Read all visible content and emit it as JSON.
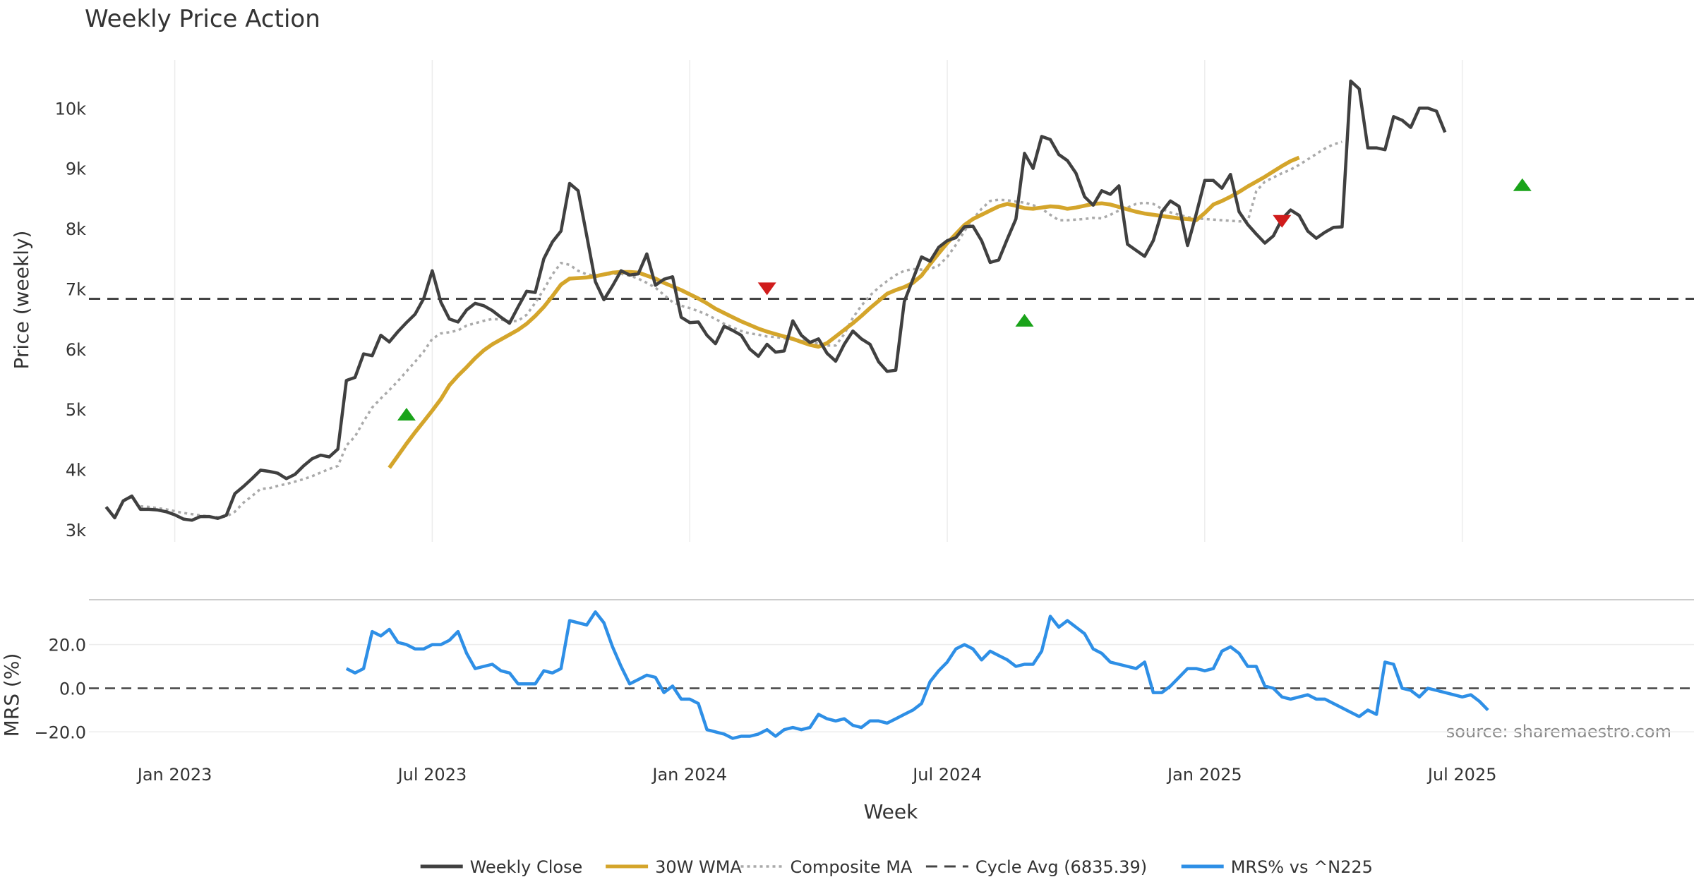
{
  "colors": {
    "close": "#404040",
    "wma": "#d4a52b",
    "composite": "#aaaaaa",
    "cycle": "#444444",
    "mrs": "#2e8fe6",
    "buy": "#1aa31a",
    "sell": "#d01c1c",
    "grid": "#ececec"
  },
  "chart_data": [
    {
      "type": "line",
      "title": "Weekly Price Action",
      "xlabel": "",
      "ylabel": "Price (weekly)",
      "xlim": [
        -2,
        185
      ],
      "ylim": [
        2800,
        10800
      ],
      "yticks": [
        3000,
        4000,
        5000,
        6000,
        7000,
        8000,
        9000,
        10000
      ],
      "ytick_labels": [
        "3k",
        "4k",
        "5k",
        "6k",
        "7k",
        "8k",
        "9k",
        "10k"
      ],
      "grid": true,
      "series": [
        {
          "name": "Weekly Close",
          "style": "solid",
          "start": 0,
          "values": [
            3380,
            3200,
            3480,
            3560,
            3340,
            3340,
            3330,
            3300,
            3250,
            3180,
            3160,
            3220,
            3220,
            3190,
            3240,
            3600,
            3720,
            3850,
            3990,
            3970,
            3940,
            3850,
            3920,
            4060,
            4180,
            4240,
            4210,
            4340,
            5480,
            5530,
            5920,
            5890,
            6230,
            6120,
            6290,
            6440,
            6580,
            6840,
            7300,
            6780,
            6500,
            6450,
            6650,
            6760,
            6720,
            6640,
            6530,
            6430,
            6700,
            6960,
            6940,
            7500,
            7780,
            7960,
            8750,
            8630,
            7880,
            7120,
            6820,
            7050,
            7300,
            7230,
            7250,
            7580,
            7060,
            7160,
            7200,
            6530,
            6440,
            6450,
            6230,
            6090,
            6380,
            6310,
            6230,
            6000,
            5880,
            6080,
            5950,
            5970,
            6470,
            6230,
            6110,
            6170,
            5930,
            5800,
            6080,
            6300,
            6170,
            6080,
            5790,
            5630,
            5650,
            6790,
            7160,
            7530,
            7460,
            7690,
            7800,
            7850,
            8030,
            8040,
            7800,
            7440,
            7480,
            7830,
            8160,
            9250,
            9000,
            9530,
            9480,
            9230,
            9130,
            8920,
            8530,
            8390,
            8630,
            8570,
            8710,
            7740,
            7640,
            7540,
            7800,
            8280,
            8460,
            8370,
            7720,
            8240,
            8800,
            8800,
            8670,
            8900,
            8280,
            8070,
            7910,
            7760,
            7880,
            8160,
            8310,
            8220,
            7960,
            7840,
            7940,
            8020,
            8030,
            10450,
            10320,
            9340,
            9340,
            9310,
            9860,
            9800,
            9680,
            10000,
            10000,
            9950,
            9600
          ]
        },
        {
          "name": "30W WMA",
          "style": "solid",
          "start": 33,
          "values": [
            4030,
            4230,
            4430,
            4620,
            4800,
            4980,
            5170,
            5400,
            5560,
            5700,
            5850,
            5980,
            6080,
            6160,
            6240,
            6320,
            6420,
            6550,
            6700,
            6880,
            7070,
            7170,
            7180,
            7190,
            7210,
            7240,
            7270,
            7280,
            7280,
            7270,
            7220,
            7170,
            7100,
            7040,
            6980,
            6910,
            6840,
            6760,
            6670,
            6600,
            6530,
            6460,
            6400,
            6340,
            6290,
            6250,
            6210,
            6170,
            6120,
            6070,
            6040,
            6100,
            6210,
            6320,
            6430,
            6550,
            6680,
            6800,
            6920,
            6980,
            7030,
            7100,
            7220,
            7410,
            7590,
            7760,
            7910,
            8060,
            8160,
            8230,
            8300,
            8370,
            8410,
            8380,
            8340,
            8330,
            8350,
            8370,
            8360,
            8330,
            8350,
            8380,
            8410,
            8420,
            8400,
            8360,
            8320,
            8280,
            8250,
            8230,
            8210,
            8190,
            8170,
            8160,
            8140,
            8260,
            8400,
            8460,
            8530,
            8610,
            8700,
            8780,
            8860,
            8950,
            9040,
            9120,
            9180
          ]
        },
        {
          "name": "Composite MA",
          "style": "dotted",
          "start": 4,
          "values": [
            3390,
            3380,
            3360,
            3340,
            3310,
            3280,
            3260,
            3240,
            3220,
            3210,
            3220,
            3300,
            3450,
            3560,
            3680,
            3690,
            3730,
            3760,
            3800,
            3840,
            3890,
            3950,
            4010,
            4060,
            4400,
            4550,
            4800,
            5030,
            5180,
            5320,
            5470,
            5630,
            5790,
            5960,
            6170,
            6260,
            6280,
            6310,
            6390,
            6430,
            6470,
            6500,
            6490,
            6460,
            6470,
            6570,
            6770,
            6990,
            7240,
            7430,
            7400,
            7300,
            7240,
            7220,
            7230,
            7250,
            7250,
            7220,
            7170,
            7100,
            7020,
            6900,
            6780,
            6720,
            6680,
            6630,
            6570,
            6500,
            6420,
            6360,
            6300,
            6260,
            6240,
            6210,
            6200,
            6180,
            6160,
            6150,
            6120,
            6090,
            6060,
            6060,
            6250,
            6520,
            6720,
            6890,
            7020,
            7130,
            7230,
            7300,
            7330,
            7320,
            7330,
            7390,
            7530,
            7730,
            7960,
            8160,
            8330,
            8460,
            8480,
            8470,
            8450,
            8430,
            8390,
            8330,
            8230,
            8140,
            8140,
            8150,
            8160,
            8180,
            8170,
            8230,
            8300,
            8350,
            8410,
            8430,
            8410,
            8330,
            8270,
            8230,
            8190,
            8170,
            8160,
            8150,
            8140,
            8130,
            8120,
            8120,
            8620,
            8780,
            8850,
            8920,
            8980,
            9060,
            9150,
            9240,
            9330,
            9400,
            9440
          ]
        },
        {
          "name": "Cycle Avg (6835.39)",
          "style": "dashed",
          "value": 6835.39
        }
      ],
      "markers": [
        {
          "kind": "buy",
          "x": 35,
          "y": 4920
        },
        {
          "kind": "sell",
          "x": 77,
          "y": 7000
        },
        {
          "kind": "buy",
          "x": 107,
          "y": 6480
        },
        {
          "kind": "sell",
          "x": 137,
          "y": 8120
        },
        {
          "kind": "buy",
          "x": 165,
          "y": 8730
        }
      ]
    },
    {
      "type": "line",
      "title": "",
      "xlabel": "Week",
      "ylabel": "MRS (%)",
      "xlim": [
        -2,
        185
      ],
      "ylim": [
        -28,
        38
      ],
      "yticks": [
        -20,
        0,
        20
      ],
      "ytick_labels": [
        "−20.0",
        "0.0",
        "20.0"
      ],
      "grid": true,
      "zero_line": "dashed",
      "series": [
        {
          "name": "MRS% vs ^N225",
          "style": "solid",
          "start": 28,
          "values": [
            9,
            7,
            9,
            26,
            24,
            27,
            21,
            20,
            18,
            18,
            20,
            20,
            22,
            26,
            16,
            9,
            10,
            11,
            8,
            7,
            2,
            2,
            2,
            8,
            7,
            9,
            31,
            30,
            29,
            35,
            30,
            19,
            10,
            2,
            4,
            6,
            5,
            -2,
            1,
            -5,
            -5,
            -7,
            -19,
            -20,
            -21,
            -23,
            -22,
            -22,
            -21,
            -19,
            -22,
            -19,
            -18,
            -19,
            -18,
            -12,
            -14,
            -15,
            -14,
            -17,
            -18,
            -15,
            -15,
            -16,
            -14,
            -12,
            -10,
            -7,
            3,
            8,
            12,
            18,
            20,
            18,
            13,
            17,
            15,
            13,
            10,
            11,
            11,
            17,
            33,
            28,
            31,
            28,
            25,
            18,
            16,
            12,
            11,
            10,
            9,
            12,
            -2,
            -2,
            1,
            5,
            9,
            9,
            8,
            9,
            17,
            19,
            16,
            10,
            10,
            1,
            0,
            -4,
            -5,
            -4,
            -3,
            -5,
            -5,
            -7,
            -9,
            -11,
            -13,
            -10,
            -12,
            12,
            11,
            0,
            -1,
            -4,
            0,
            -1,
            -2,
            -3,
            -4,
            -3,
            -6,
            -10
          ]
        }
      ]
    }
  ],
  "x_ticks": [
    {
      "x": 8,
      "label": "Jan 2023"
    },
    {
      "x": 38,
      "label": "Jul 2023"
    },
    {
      "x": 68,
      "label": "Jan 2024"
    },
    {
      "x": 98,
      "label": "Jul 2024"
    },
    {
      "x": 128,
      "label": "Jan 2025"
    },
    {
      "x": 158,
      "label": "Jul 2025"
    }
  ],
  "source_note": "source: sharemaestro.com",
  "legend": {
    "placement": "bottom-center",
    "items": [
      {
        "label": "Weekly Close",
        "style": "solid",
        "color_key": "close"
      },
      {
        "label": "30W WMA",
        "style": "solid",
        "color_key": "wma"
      },
      {
        "label": "Composite MA",
        "style": "dotted",
        "color_key": "composite"
      },
      {
        "label": "Cycle Avg (6835.39)",
        "style": "dashed",
        "color_key": "cycle"
      },
      {
        "label": "MRS% vs ^N225",
        "style": "solid",
        "color_key": "mrs"
      }
    ]
  }
}
